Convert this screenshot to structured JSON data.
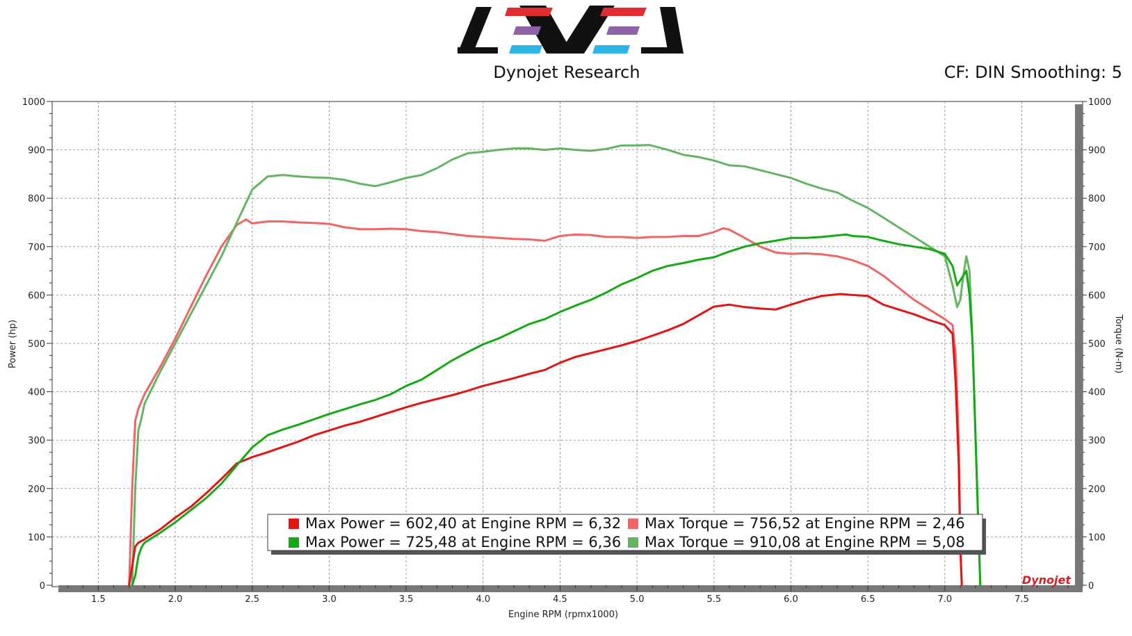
{
  "header": {
    "subtitle": "Dynojet Research",
    "settings": "CF: DIN Smoothing: 5",
    "brand_logo": "Dynojet"
  },
  "colors": {
    "power_1": "#e41414",
    "torque_1": "#f06464",
    "power_2": "#14aa14",
    "torque_2": "#64b464",
    "logo_red": "#e32b32",
    "logo_purple": "#8e61a8",
    "logo_blue": "#2db4e6"
  },
  "chart_data": {
    "type": "line",
    "xlabel": "Engine RPM (rpmx1000)",
    "ylabel": "Power (hp)",
    "y2label": "Torque (N-m)",
    "xlim": [
      1.2,
      7.85
    ],
    "ylim": [
      0,
      1000
    ],
    "y2lim": [
      0,
      1000
    ],
    "x_ticks": [
      "1.5",
      "2.0",
      "2.5",
      "3.0",
      "3.5",
      "4.0",
      "4.5",
      "5.0",
      "5.5",
      "6.0",
      "6.5",
      "7.0",
      "7.5"
    ],
    "y_ticks": [
      "0",
      "100",
      "200",
      "300",
      "400",
      "500",
      "600",
      "700",
      "800",
      "900",
      "1000"
    ],
    "grid": true,
    "legend_position": "bottom-center",
    "series": [
      {
        "name": "Max Power = 602,40 at Engine RPM = 6,32",
        "color": "#e41414",
        "width": 3,
        "axis": "power",
        "x": [
          1.7,
          1.72,
          1.74,
          1.76,
          1.8,
          1.9,
          2.0,
          2.1,
          2.2,
          2.3,
          2.4,
          2.5,
          2.6,
          2.7,
          2.8,
          2.9,
          3.0,
          3.1,
          3.2,
          3.3,
          3.4,
          3.5,
          3.6,
          3.7,
          3.8,
          3.9,
          4.0,
          4.1,
          4.2,
          4.3,
          4.4,
          4.5,
          4.6,
          4.7,
          4.8,
          4.9,
          5.0,
          5.1,
          5.2,
          5.3,
          5.4,
          5.5,
          5.6,
          5.7,
          5.8,
          5.9,
          6.0,
          6.1,
          6.2,
          6.32,
          6.4,
          6.5,
          6.6,
          6.7,
          6.8,
          6.9,
          7.0,
          7.05,
          7.07,
          7.09,
          7.1,
          7.11
        ],
        "y": [
          0,
          40,
          80,
          88,
          95,
          115,
          140,
          162,
          190,
          220,
          252,
          265,
          275,
          286,
          297,
          310,
          320,
          330,
          338,
          348,
          358,
          368,
          377,
          385,
          393,
          402,
          412,
          420,
          428,
          437,
          445,
          460,
          472,
          480,
          488,
          496,
          505,
          516,
          527,
          540,
          558,
          576,
          580,
          575,
          572,
          570,
          580,
          590,
          598,
          602,
          600,
          598,
          580,
          570,
          560,
          548,
          538,
          520,
          420,
          250,
          80,
          0
        ]
      },
      {
        "name": "Max Torque = 756,52 at Engine RPM = 2,46",
        "color": "#f06464",
        "width": 3,
        "axis": "torque",
        "x": [
          1.7,
          1.72,
          1.74,
          1.76,
          1.8,
          1.9,
          2.0,
          2.1,
          2.2,
          2.3,
          2.4,
          2.46,
          2.5,
          2.6,
          2.7,
          2.8,
          2.9,
          3.0,
          3.1,
          3.2,
          3.3,
          3.4,
          3.5,
          3.6,
          3.7,
          3.8,
          3.9,
          4.0,
          4.1,
          4.2,
          4.3,
          4.4,
          4.5,
          4.6,
          4.7,
          4.8,
          4.9,
          5.0,
          5.1,
          5.2,
          5.3,
          5.4,
          5.5,
          5.56,
          5.6,
          5.7,
          5.8,
          5.9,
          6.0,
          6.1,
          6.2,
          6.3,
          6.4,
          6.5,
          6.6,
          6.7,
          6.8,
          6.9,
          7.0,
          7.05,
          7.07,
          7.09,
          7.1,
          7.11
        ],
        "y": [
          0,
          200,
          340,
          365,
          395,
          450,
          510,
          575,
          640,
          700,
          745,
          756,
          748,
          752,
          752,
          750,
          749,
          747,
          740,
          736,
          736,
          737,
          736,
          732,
          730,
          726,
          722,
          720,
          718,
          716,
          715,
          712,
          722,
          725,
          724,
          720,
          720,
          718,
          720,
          720,
          722,
          722,
          730,
          738,
          735,
          718,
          700,
          688,
          685,
          686,
          684,
          680,
          672,
          660,
          640,
          615,
          590,
          570,
          550,
          538,
          480,
          300,
          100,
          0
        ]
      },
      {
        "name": "Max Power = 725,48 at Engine RPM = 6,36",
        "color": "#14aa14",
        "width": 3,
        "axis": "power",
        "x": [
          1.72,
          1.74,
          1.76,
          1.78,
          1.8,
          1.9,
          2.0,
          2.1,
          2.2,
          2.3,
          2.4,
          2.5,
          2.6,
          2.7,
          2.8,
          2.9,
          3.0,
          3.1,
          3.2,
          3.3,
          3.4,
          3.5,
          3.6,
          3.7,
          3.8,
          3.9,
          4.0,
          4.1,
          4.2,
          4.3,
          4.4,
          4.5,
          4.6,
          4.7,
          4.8,
          4.9,
          5.0,
          5.1,
          5.2,
          5.3,
          5.4,
          5.5,
          5.6,
          5.7,
          5.8,
          5.9,
          6.0,
          6.1,
          6.2,
          6.36,
          6.4,
          6.5,
          6.6,
          6.7,
          6.8,
          6.9,
          7.0,
          7.05,
          7.08,
          7.1,
          7.12,
          7.14,
          7.16,
          7.18,
          7.2,
          7.22,
          7.23
        ],
        "y": [
          0,
          20,
          60,
          78,
          88,
          108,
          130,
          155,
          180,
          210,
          248,
          285,
          310,
          322,
          332,
          343,
          354,
          364,
          374,
          383,
          395,
          412,
          425,
          445,
          465,
          482,
          498,
          510,
          525,
          540,
          550,
          565,
          578,
          590,
          605,
          622,
          635,
          650,
          660,
          666,
          673,
          678,
          690,
          700,
          707,
          712,
          718,
          718,
          720,
          725,
          722,
          720,
          712,
          705,
          700,
          695,
          685,
          660,
          620,
          630,
          640,
          650,
          600,
          500,
          300,
          100,
          0
        ]
      },
      {
        "name": "Max Torque = 910,08 at Engine RPM = 5,08",
        "color": "#64b464",
        "width": 3,
        "axis": "torque",
        "x": [
          1.72,
          1.74,
          1.76,
          1.78,
          1.8,
          1.9,
          2.0,
          2.1,
          2.2,
          2.3,
          2.4,
          2.5,
          2.6,
          2.7,
          2.8,
          2.9,
          3.0,
          3.1,
          3.2,
          3.3,
          3.4,
          3.5,
          3.6,
          3.7,
          3.8,
          3.9,
          4.0,
          4.1,
          4.2,
          4.3,
          4.4,
          4.5,
          4.6,
          4.7,
          4.8,
          4.9,
          5.0,
          5.08,
          5.2,
          5.3,
          5.4,
          5.5,
          5.6,
          5.7,
          5.8,
          5.9,
          6.0,
          6.1,
          6.2,
          6.3,
          6.4,
          6.5,
          6.6,
          6.7,
          6.8,
          6.9,
          7.0,
          7.05,
          7.08,
          7.1,
          7.12,
          7.14,
          7.16,
          7.18,
          7.2,
          7.22,
          7.23
        ],
        "y": [
          0,
          200,
          320,
          345,
          375,
          440,
          500,
          560,
          620,
          680,
          750,
          818,
          845,
          848,
          845,
          843,
          842,
          838,
          830,
          825,
          833,
          842,
          848,
          862,
          880,
          893,
          896,
          900,
          903,
          903,
          900,
          903,
          900,
          898,
          902,
          909,
          909,
          910,
          900,
          890,
          885,
          878,
          868,
          866,
          858,
          850,
          842,
          830,
          820,
          812,
          795,
          780,
          760,
          740,
          720,
          700,
          680,
          620,
          575,
          590,
          640,
          680,
          650,
          500,
          300,
          100,
          0
        ]
      }
    ]
  }
}
